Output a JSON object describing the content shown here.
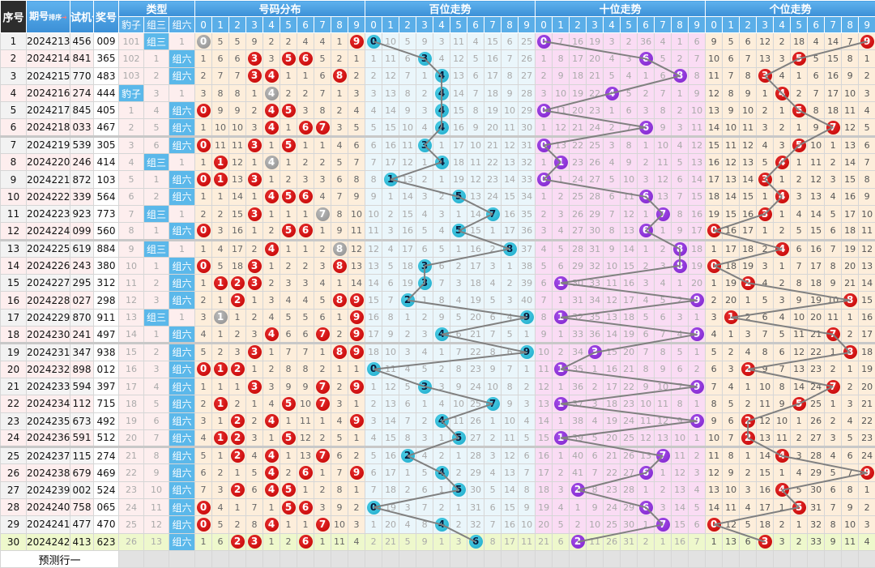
{
  "header": {
    "seq": "序号",
    "period": "期号",
    "sort": "排序",
    "trial": "试机号",
    "prize": "奖号",
    "type": "类型",
    "type_cols": [
      "豹子",
      "组三",
      "组六"
    ],
    "dist": "号码分布",
    "hundreds": "百位走势",
    "tens": "十位走势",
    "units": "个位走势",
    "digits": [
      "0",
      "1",
      "2",
      "3",
      "4",
      "5",
      "6",
      "7",
      "8",
      "9"
    ]
  },
  "colors": {
    "dist_ball": "#c00000",
    "repeat_ball": "#8d8d8d",
    "hundreds_ball": "#1ba8c8",
    "tens_ball": "#7d22cc",
    "units_ball": "#c00000",
    "header": "#3b8fd6",
    "type_badge": "#5bb8ea"
  },
  "rows": {
    "seq": [
      "1",
      "2",
      "3",
      "4",
      "5",
      "6",
      "7",
      "8",
      "9",
      "10",
      "11",
      "12",
      "13",
      "14",
      "15",
      "16",
      "17",
      "18",
      "19",
      "20",
      "21",
      "22",
      "23",
      "24",
      "25",
      "26",
      "27",
      "28",
      "29",
      "30"
    ],
    "period": [
      "2024213",
      "2024214",
      "2024215",
      "2024216",
      "2024217",
      "2024218",
      "2024219",
      "2024220",
      "2024221",
      "2024222",
      "2024223",
      "2024224",
      "2024225",
      "2024226",
      "2024227",
      "2024228",
      "2024229",
      "2024230",
      "2024231",
      "2024232",
      "2024233",
      "2024234",
      "2024235",
      "2024236",
      "2024237",
      "2024238",
      "2024239",
      "2024240",
      "2024241",
      "2024242"
    ],
    "trial": [
      "456",
      "841",
      "770",
      "274",
      "845",
      "033",
      "539",
      "246",
      "872",
      "339",
      "923",
      "099",
      "619",
      "243",
      "295",
      "027",
      "870",
      "241",
      "347",
      "898",
      "594",
      "112",
      "673",
      "591",
      "115",
      "679",
      "002",
      "758",
      "477",
      "413"
    ],
    "prize": [
      "009",
      "365",
      "483",
      "444",
      "405",
      "467",
      "305",
      "414",
      "103",
      "564",
      "773",
      "560",
      "884",
      "380",
      "312",
      "298",
      "911",
      "497",
      "938",
      "012",
      "397",
      "715",
      "492",
      "512",
      "274",
      "469",
      "524",
      "065",
      "470",
      "623"
    ]
  },
  "types": {
    "baozi": [
      "101",
      "102",
      "103",
      "豹子",
      "1",
      "2",
      "3",
      "4",
      "5",
      "6",
      "7",
      "8",
      "9",
      "10",
      "11",
      "12",
      "13",
      "14",
      "15",
      "16",
      "17",
      "18",
      "19",
      "20",
      "21",
      "22",
      "23",
      "24",
      "25",
      "26"
    ],
    "zusan": [
      "组三",
      "1",
      "2",
      "3",
      "4",
      "5",
      "6",
      "组三",
      "1",
      "2",
      "组三",
      "1",
      "组三",
      "1",
      "2",
      "3",
      "组三",
      "1",
      "2",
      "3",
      "4",
      "5",
      "6",
      "7",
      "8",
      "9",
      "10",
      "11",
      "12",
      "13"
    ],
    "zuliu": [
      "1",
      "组六",
      "组六",
      "1",
      "组六",
      "组六",
      "组六",
      "1",
      "组六",
      "组六",
      "1",
      "组六",
      "1",
      "组六",
      "组六",
      "组六",
      "1",
      "组六",
      "组六",
      "组六",
      "组六",
      "组六",
      "组六",
      "组六",
      "组六",
      "组六",
      "组六",
      "组六",
      "组六",
      "组六"
    ]
  },
  "trend": {
    "dist": [
      [
        0,
        1,
        2,
        3,
        0,
        1,
        0,
        1,
        0,
        1,
        2,
        0,
        1,
        0,
        1,
        2,
        3,
        4,
        5,
        0,
        1,
        2,
        3,
        4,
        5,
        6,
        7,
        0,
        0,
        1
      ],
      [
        5,
        6,
        7,
        8,
        9,
        10,
        11,
        0,
        0,
        1,
        2,
        3,
        4,
        5,
        0,
        1,
        0,
        1,
        2,
        0,
        1,
        0,
        1,
        0,
        1,
        2,
        3,
        4,
        5,
        6
      ],
      [
        5,
        6,
        7,
        8,
        9,
        10,
        11,
        12,
        13,
        14,
        15,
        16,
        17,
        18,
        0,
        0,
        1,
        2,
        3,
        0,
        1,
        2,
        0,
        0,
        0,
        1,
        0,
        1,
        2,
        0
      ],
      [
        9,
        0,
        0,
        1,
        2,
        3,
        0,
        1,
        0,
        1,
        0,
        1,
        2,
        0,
        0,
        1,
        2,
        3,
        0,
        1,
        0,
        1,
        2,
        3,
        4,
        5,
        6,
        7,
        8,
        0
      ],
      [
        2,
        3,
        0,
        0,
        0,
        0,
        1,
        0,
        1,
        0,
        1,
        2,
        0,
        1,
        2,
        3,
        4,
        0,
        1,
        2,
        3,
        4,
        0,
        1,
        0,
        0,
        0,
        1,
        0,
        1
      ],
      [
        2,
        0,
        1,
        2,
        0,
        1,
        0,
        1,
        2,
        0,
        1,
        0,
        1,
        2,
        3,
        4,
        5,
        6,
        7,
        8,
        9,
        0,
        1,
        0,
        1,
        2,
        0,
        0,
        1,
        2
      ],
      [
        4,
        0,
        1,
        2,
        3,
        0,
        1,
        2,
        3,
        0,
        1,
        0,
        1,
        2,
        3,
        4,
        5,
        6,
        7,
        8,
        9,
        10,
        11,
        12,
        13,
        0,
        1,
        0,
        1,
        0
      ],
      [
        4,
        5,
        6,
        7,
        8,
        0,
        1,
        2,
        3,
        4,
        0,
        1,
        2,
        3,
        4,
        5,
        6,
        0,
        1,
        2,
        0,
        0,
        1,
        2,
        0,
        1,
        2,
        3,
        0,
        1
      ],
      [
        1,
        2,
        0,
        1,
        2,
        3,
        4,
        5,
        6,
        7,
        8,
        9,
        0,
        0,
        1,
        0,
        1,
        2,
        0,
        1,
        2,
        3,
        4,
        5,
        6,
        7,
        8,
        9,
        10,
        11
      ],
      [
        0,
        1,
        2,
        3,
        4,
        5,
        6,
        7,
        8,
        9,
        10,
        11,
        12,
        13,
        14,
        0,
        0,
        0,
        0,
        1,
        0,
        1,
        0,
        1,
        2,
        0,
        1,
        2,
        3,
        4
      ]
    ],
    "hundreds": [
      [
        0,
        1,
        2,
        3,
        4,
        5,
        6,
        7,
        8,
        9,
        10,
        11,
        12,
        13,
        14,
        15,
        16,
        17,
        18,
        0,
        1,
        2,
        3,
        4,
        5,
        6,
        7,
        0,
        1,
        2
      ],
      [
        10,
        11,
        12,
        13,
        14,
        15,
        16,
        17,
        0,
        1,
        2,
        3,
        4,
        5,
        6,
        7,
        8,
        9,
        10,
        11,
        12,
        13,
        14,
        15,
        16,
        17,
        18,
        19,
        20,
        21
      ],
      [
        5,
        6,
        7,
        8,
        9,
        10,
        11,
        12,
        13,
        14,
        15,
        16,
        17,
        18,
        19,
        0,
        1,
        2,
        3,
        4,
        5,
        6,
        7,
        8,
        0,
        1,
        2,
        3,
        4,
        5
      ],
      [
        9,
        0,
        1,
        2,
        3,
        4,
        0,
        1,
        2,
        3,
        4,
        5,
        6,
        0,
        0,
        1,
        2,
        3,
        4,
        5,
        0,
        1,
        2,
        3,
        4,
        5,
        6,
        7,
        8,
        9
      ],
      [
        3,
        4,
        0,
        0,
        0,
        0,
        1,
        0,
        1,
        2,
        3,
        4,
        5,
        6,
        7,
        8,
        9,
        0,
        1,
        2,
        3,
        4,
        0,
        1,
        2,
        0,
        1,
        2,
        0,
        1
      ],
      [
        11,
        12,
        13,
        14,
        15,
        16,
        17,
        18,
        19,
        0,
        1,
        0,
        1,
        2,
        3,
        4,
        5,
        6,
        7,
        8,
        9,
        10,
        11,
        0,
        1,
        2,
        0,
        1,
        2,
        3
      ],
      [
        4,
        5,
        6,
        7,
        8,
        9,
        10,
        11,
        12,
        13,
        14,
        15,
        16,
        17,
        18,
        19,
        20,
        21,
        22,
        23,
        24,
        25,
        26,
        27,
        28,
        29,
        30,
        31,
        32,
        0
      ],
      [
        15,
        16,
        17,
        18,
        19,
        20,
        21,
        22,
        23,
        24,
        0,
        1,
        2,
        3,
        4,
        5,
        6,
        7,
        8,
        9,
        10,
        0,
        1,
        2,
        3,
        4,
        5,
        6,
        7,
        8
      ],
      [
        6,
        7,
        8,
        9,
        10,
        11,
        12,
        13,
        14,
        15,
        16,
        17,
        0,
        1,
        2,
        3,
        4,
        5,
        6,
        7,
        8,
        9,
        10,
        11,
        12,
        13,
        14,
        15,
        16,
        17
      ],
      [
        25,
        26,
        27,
        28,
        29,
        30,
        31,
        32,
        33,
        34,
        35,
        36,
        37,
        38,
        39,
        40,
        0,
        1,
        0,
        1,
        2,
        3,
        4,
        5,
        6,
        7,
        8,
        9,
        10,
        11
      ]
    ],
    "tens": [
      [
        0,
        1,
        2,
        3,
        0,
        1,
        0,
        1,
        0,
        1,
        2,
        3,
        4,
        5,
        6,
        7,
        8,
        9,
        10,
        11,
        12,
        13,
        14,
        15,
        16,
        17,
        18,
        19,
        20,
        21
      ],
      [
        7,
        8,
        9,
        10,
        11,
        12,
        13,
        0,
        1,
        2,
        3,
        4,
        5,
        6,
        0,
        1,
        0,
        1,
        2,
        0,
        1,
        0,
        1,
        0,
        1,
        2,
        3,
        4,
        5,
        6
      ],
      [
        16,
        17,
        18,
        19,
        20,
        21,
        22,
        23,
        24,
        25,
        26,
        27,
        28,
        29,
        30,
        31,
        32,
        33,
        34,
        35,
        36,
        37,
        38,
        39,
        40,
        41,
        0,
        1,
        2,
        0
      ],
      [
        19,
        20,
        21,
        22,
        23,
        24,
        25,
        26,
        27,
        28,
        29,
        30,
        31,
        32,
        33,
        34,
        35,
        36,
        0,
        1,
        2,
        3,
        4,
        5,
        6,
        7,
        8,
        9,
        10,
        11
      ],
      [
        3,
        4,
        5,
        0,
        1,
        2,
        3,
        4,
        5,
        6,
        7,
        8,
        9,
        10,
        11,
        12,
        13,
        14,
        15,
        16,
        17,
        18,
        19,
        20,
        21,
        22,
        23,
        24,
        25,
        26
      ],
      [
        2,
        3,
        4,
        5,
        6,
        7,
        8,
        9,
        10,
        11,
        12,
        13,
        14,
        15,
        16,
        17,
        18,
        19,
        20,
        21,
        22,
        23,
        24,
        25,
        26,
        27,
        28,
        29,
        30,
        31
      ],
      [
        36,
        0,
        1,
        2,
        3,
        0,
        1,
        2,
        3,
        0,
        1,
        0,
        1,
        2,
        3,
        4,
        5,
        6,
        7,
        8,
        9,
        10,
        11,
        12,
        13,
        0,
        1,
        0,
        1,
        2
      ],
      [
        4,
        5,
        6,
        7,
        8,
        9,
        10,
        11,
        12,
        13,
        0,
        1,
        2,
        3,
        4,
        5,
        6,
        7,
        8,
        9,
        10,
        11,
        12,
        13,
        0,
        1,
        2,
        3,
        0,
        1
      ],
      [
        1,
        2,
        0,
        1,
        2,
        3,
        4,
        5,
        6,
        7,
        8,
        9,
        0,
        0,
        1,
        2,
        3,
        4,
        5,
        6,
        7,
        8,
        9,
        10,
        11,
        12,
        13,
        14,
        15,
        16
      ],
      [
        6,
        7,
        8,
        9,
        10,
        11,
        12,
        13,
        14,
        15,
        16,
        17,
        18,
        19,
        20,
        0,
        1,
        0,
        1,
        2,
        0,
        1,
        0,
        1,
        2,
        3,
        4,
        5,
        6,
        7
      ]
    ],
    "units": [
      [
        9,
        10,
        11,
        12,
        13,
        14,
        15,
        16,
        17,
        18,
        19,
        0,
        1,
        0,
        1,
        2,
        3,
        4,
        5,
        6,
        7,
        8,
        9,
        10,
        11,
        12,
        13,
        14,
        0,
        1
      ],
      [
        5,
        6,
        7,
        8,
        9,
        10,
        11,
        12,
        13,
        14,
        15,
        16,
        17,
        18,
        19,
        20,
        0,
        1,
        2,
        3,
        4,
        5,
        6,
        7,
        8,
        9,
        10,
        11,
        12,
        13
      ],
      [
        6,
        7,
        8,
        9,
        10,
        11,
        12,
        13,
        14,
        15,
        16,
        17,
        18,
        19,
        0,
        1,
        2,
        3,
        4,
        0,
        1,
        2,
        0,
        0,
        1,
        2,
        3,
        4,
        5,
        6
      ],
      [
        12,
        13,
        0,
        1,
        2,
        3,
        4,
        5,
        0,
        1,
        0,
        1,
        2,
        3,
        4,
        5,
        6,
        7,
        8,
        9,
        10,
        11,
        12,
        13,
        14,
        15,
        16,
        17,
        18,
        0
      ],
      [
        2,
        3,
        4,
        0,
        1,
        2,
        3,
        0,
        1,
        0,
        1,
        2,
        0,
        1,
        2,
        3,
        4,
        5,
        6,
        7,
        8,
        9,
        10,
        11,
        0,
        1,
        0,
        1,
        2,
        3
      ],
      [
        18,
        0,
        1,
        2,
        0,
        1,
        0,
        1,
        2,
        3,
        4,
        5,
        6,
        7,
        8,
        9,
        10,
        11,
        12,
        13,
        14,
        0,
        1,
        2,
        3,
        4,
        5,
        0,
        1,
        2
      ],
      [
        4,
        5,
        6,
        7,
        8,
        9,
        10,
        11,
        12,
        13,
        14,
        15,
        16,
        17,
        18,
        19,
        20,
        21,
        22,
        23,
        24,
        25,
        26,
        27,
        28,
        29,
        30,
        31,
        32,
        33
      ],
      [
        14,
        15,
        16,
        17,
        18,
        0,
        1,
        2,
        3,
        4,
        5,
        6,
        7,
        8,
        9,
        10,
        11,
        0,
        1,
        2,
        0,
        1,
        2,
        3,
        4,
        5,
        6,
        7,
        8,
        9
      ],
      [
        7,
        8,
        9,
        10,
        11,
        12,
        13,
        14,
        15,
        16,
        17,
        18,
        19,
        20,
        21,
        0,
        1,
        2,
        0,
        1,
        2,
        3,
        4,
        5,
        6,
        7,
        8,
        9,
        10,
        11
      ],
      [
        0,
        1,
        2,
        3,
        4,
        5,
        6,
        7,
        8,
        9,
        10,
        11,
        12,
        13,
        14,
        15,
        16,
        17,
        18,
        19,
        20,
        21,
        22,
        23,
        24,
        0,
        1,
        2,
        3,
        4
      ]
    ]
  },
  "predict_label": "预测行一"
}
